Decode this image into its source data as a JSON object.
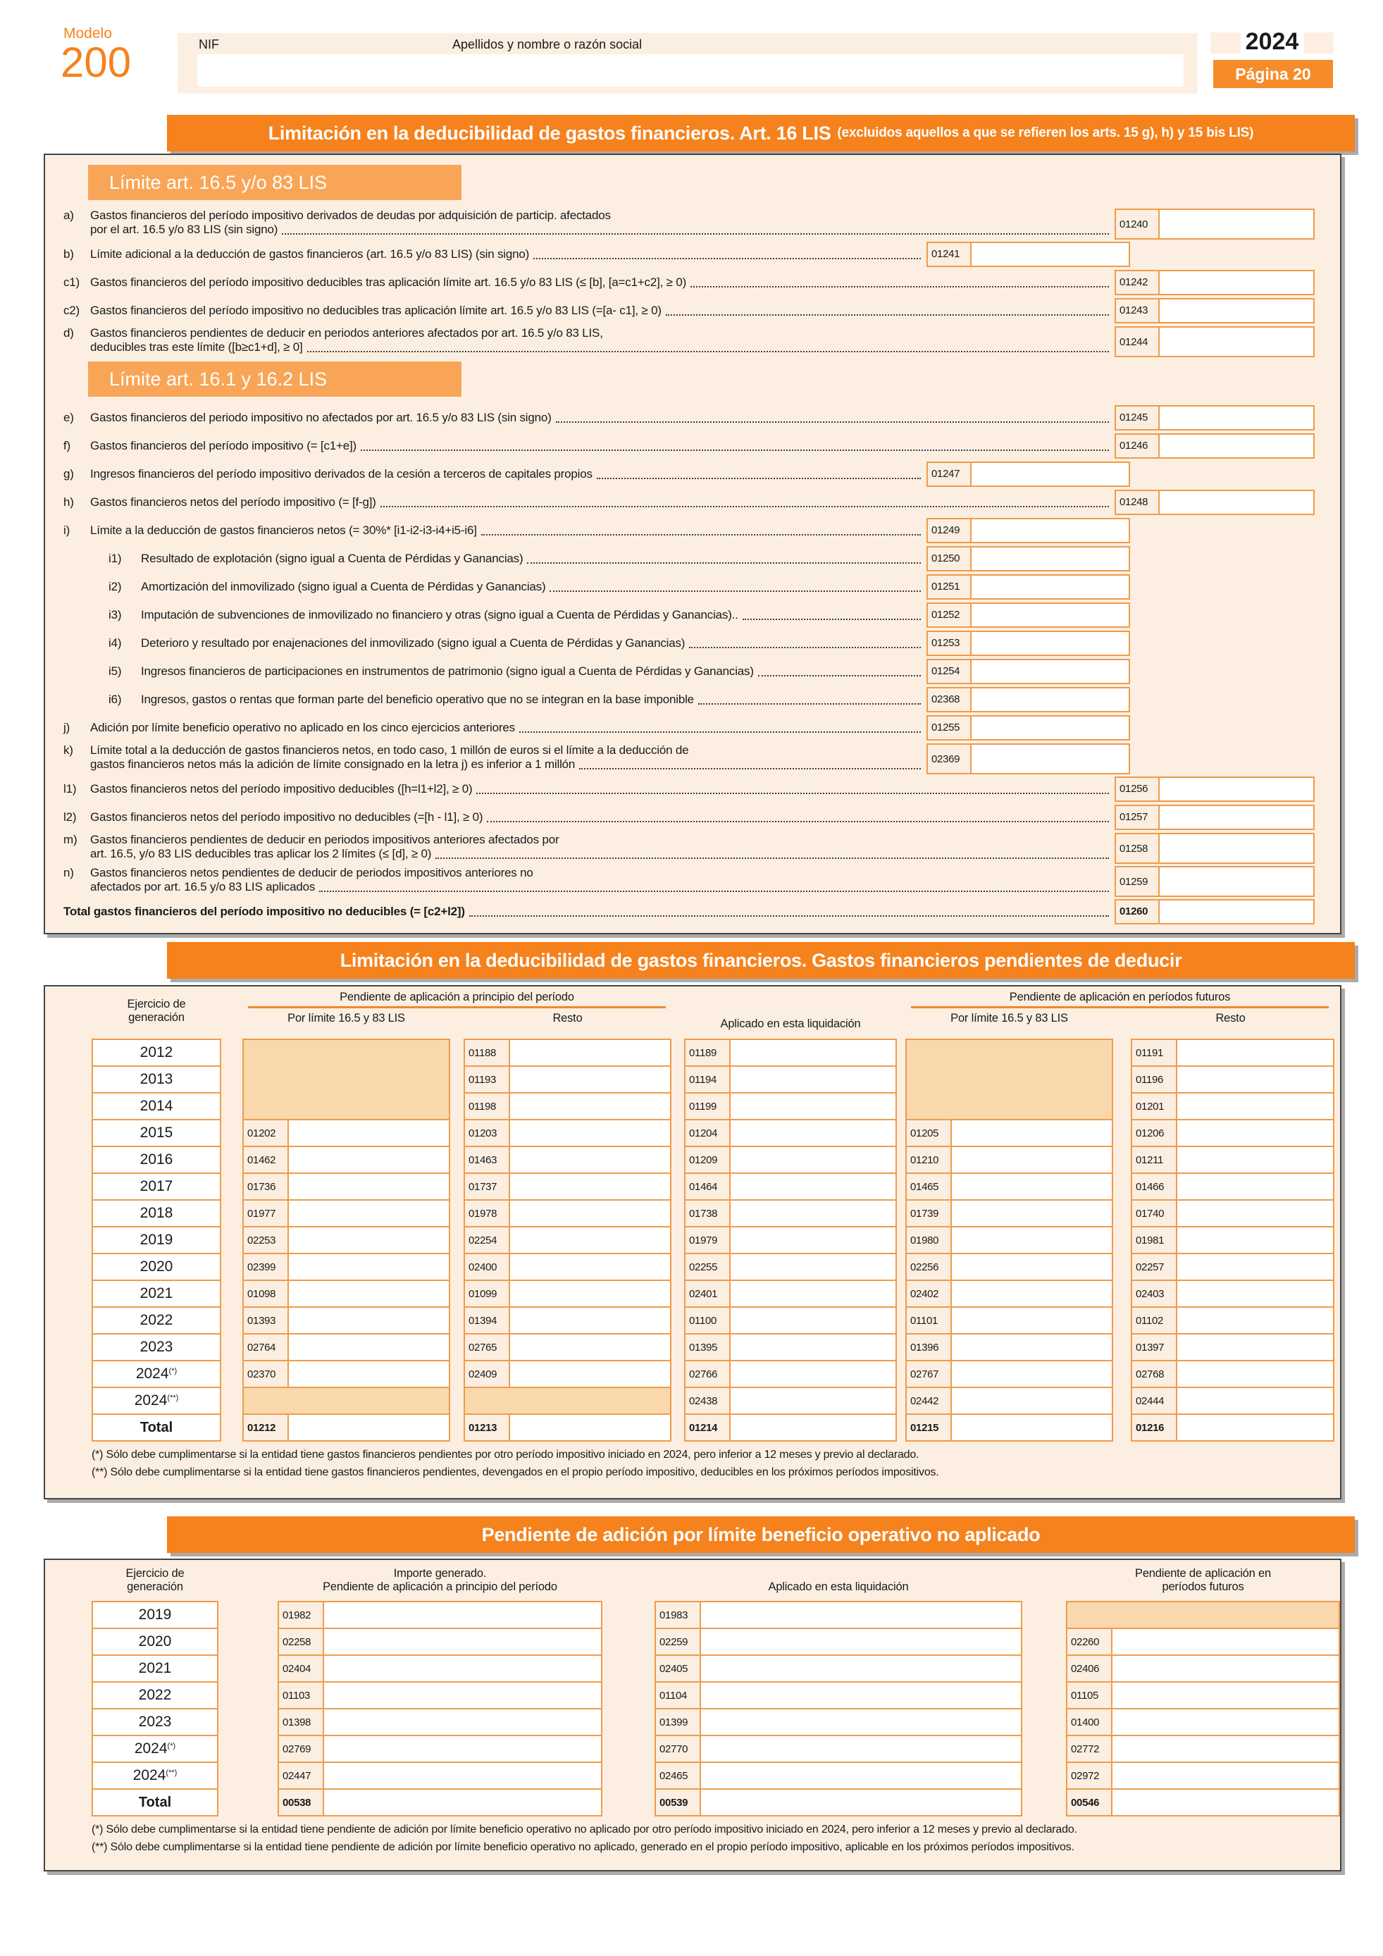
{
  "header": {
    "modelo_label": "Modelo",
    "modelo_number": "200",
    "nif_label": "NIF",
    "name_label": "Apellidos y nombre o razón social",
    "year": "2024",
    "page": "Página 20"
  },
  "sections": {
    "s1": {
      "bar_title": "Limitación en la deducibilidad de gastos financieros. Art. 16 LIS",
      "bar_subtitle": "(excluidos aquellos a que se refieren los arts. 15 g), h) y 15 bis LIS)",
      "heading1": "Límite art. 16.5 y/o 83 LIS",
      "heading2": "Límite art. 16.1 y 16.2 LIS"
    },
    "s2": {
      "bar_title": "Limitación en la deducibilidad de gastos financieros. Gastos financieros pendientes de deducir"
    },
    "s3": {
      "bar_title": "Pendiente de adición por límite beneficio operativo no aplicado"
    }
  },
  "form": {
    "block1": [
      {
        "letter": "a)",
        "lines": [
          "Gastos financieros del período impositivo derivados de deudas por adquisición de particip. afectados",
          "por el art. 16.5 y/o 83 LIS (sin signo)"
        ],
        "code": "01240",
        "pos": "right"
      },
      {
        "letter": "b)",
        "text": "Límite adicional a la deducción de gastos financieros (art. 16.5 y/o 83 LIS) (sin signo)",
        "code": "01241",
        "pos": "mid"
      },
      {
        "letter": "c1)",
        "text": "Gastos financieros del período impositivo deducibles tras aplicación límite art. 16.5 y/o 83 LIS (≤ [b], [a=c1+c2], ≥ 0)",
        "code": "01242",
        "pos": "right"
      },
      {
        "letter": "c2)",
        "text": "Gastos financieros del período impositivo no deducibles tras aplicación límite art. 16.5 y/o 83 LIS (=[a- c1], ≥ 0)",
        "code": "01243",
        "pos": "right"
      },
      {
        "letter": "d)",
        "lines": [
          "Gastos financieros pendientes de deducir en periodos anteriores afectados por art. 16.5 y/o 83 LIS,",
          "deducibles tras este límite ([b≥c1+d], ≥ 0]"
        ],
        "code": "01244",
        "pos": "right"
      }
    ],
    "block2": [
      {
        "letter": "e)",
        "text": "Gastos financieros del periodo impositivo no afectados por art. 16.5 y/o 83 LIS (sin signo)",
        "code": "01245",
        "pos": "right"
      },
      {
        "letter": "f)",
        "text": "Gastos financieros del período impositivo (= [c1+e])",
        "code": "01246",
        "pos": "right"
      },
      {
        "letter": "g)",
        "text": "Ingresos financieros del período impositivo derivados de la cesión a terceros de capitales propios",
        "code": "01247",
        "pos": "mid"
      },
      {
        "letter": "h)",
        "text": "Gastos financieros netos del período impositivo (= [f-g])",
        "code": "01248",
        "pos": "right"
      },
      {
        "letter": "i)",
        "text": "Límite a la deducción de gastos financieros netos (= 30%* [i1-i2-i3-i4+i5-i6]",
        "code": "01249",
        "pos": "mid"
      },
      {
        "letter": "i1)",
        "text": "Resultado de explotación (signo igual a Cuenta de Pérdidas y Ganancias)",
        "code": "01250",
        "pos": "mid",
        "indent": true
      },
      {
        "letter": "i2)",
        "text": "Amortización del inmovilizado (signo igual a Cuenta de Pérdidas y Ganancias)",
        "code": "01251",
        "pos": "mid",
        "indent": true
      },
      {
        "letter": "i3)",
        "text": "Imputación de subvenciones de inmovilizado no financiero y otras (signo igual a Cuenta de Pérdidas y Ganancias)..",
        "code": "01252",
        "pos": "mid",
        "indent": true
      },
      {
        "letter": "i4)",
        "text": "Deterioro y resultado por enajenaciones del inmovilizado (signo igual a Cuenta de Pérdidas y Ganancias)",
        "code": "01253",
        "pos": "mid",
        "indent": true
      },
      {
        "letter": "i5)",
        "text": "Ingresos financieros de participaciones en instrumentos de patrimonio (signo igual a Cuenta de Pérdidas y Ganancias)",
        "code": "01254",
        "pos": "mid",
        "indent": true
      },
      {
        "letter": "i6)",
        "text": "Ingresos, gastos o rentas que forman parte del beneficio operativo que no se integran en la base imponible",
        "code": "02368",
        "pos": "mid",
        "indent": true
      },
      {
        "letter": "j)",
        "text": "Adición por límite beneficio operativo no aplicado en los cinco ejercicios anteriores",
        "code": "01255",
        "pos": "mid"
      },
      {
        "letter": "k)",
        "lines": [
          "Límite total a la deducción de gastos financieros netos, en todo caso, 1 millón de euros si el límite a la deducción de",
          "gastos financieros netos más la adición de límite consignado en la letra j) es inferior a 1 millón"
        ],
        "code": "02369",
        "pos": "mid"
      },
      {
        "letter": "l1)",
        "text": "Gastos financieros netos del período impositivo deducibles ([h=l1+l2], ≥ 0)",
        "code": "01256",
        "pos": "right"
      },
      {
        "letter": "l2)",
        "text": "Gastos financieros netos del período impositivo no deducibles (=[h - l1], ≥ 0)",
        "code": "01257",
        "pos": "right"
      },
      {
        "letter": "m)",
        "lines": [
          "Gastos financieros pendientes de deducir en periodos impositivos anteriores afectados por",
          "art. 16.5, y/o 83 LIS deducibles tras aplicar los 2 límites (≤ [d], ≥ 0)"
        ],
        "code": "01258",
        "pos": "right"
      },
      {
        "letter": "n)",
        "lines": [
          "Gastos financieros netos pendientes de deducir de periodos impositivos anteriores  no",
          "afectados por art. 16.5 y/o 83 LIS aplicados"
        ],
        "code": "01259",
        "pos": "right"
      },
      {
        "letter": "",
        "text": "Total gastos financieros del período impositivo no deducibles (= [c2+l2])",
        "code": "01260",
        "pos": "right",
        "bold": true
      }
    ]
  },
  "table2": {
    "headers": {
      "year_line1": "Ejercicio de",
      "year_line2": "generación",
      "group1": "Pendiente de aplicación a principio del período",
      "sub_limite": "Por límite 16.5 y 83 LIS",
      "sub_resto": "Resto",
      "applied": "Aplicado en esta liquidación",
      "group2": "Pendiente de aplicación en períodos futuros",
      "sub_limite2": "Por límite 16.5 y 83 LIS",
      "sub_resto2": "Resto"
    },
    "years": [
      {
        "label": "2012"
      },
      {
        "label": "2013"
      },
      {
        "label": "2014"
      },
      {
        "label": "2015"
      },
      {
        "label": "2016"
      },
      {
        "label": "2017"
      },
      {
        "label": "2018"
      },
      {
        "label": "2019"
      },
      {
        "label": "2020"
      },
      {
        "label": "2021"
      },
      {
        "label": "2022"
      },
      {
        "label": "2023"
      },
      {
        "label": "2024",
        "sup": "(*)"
      },
      {
        "label": "2024",
        "sup": "(**)"
      },
      {
        "label": "Total",
        "bold": true
      }
    ],
    "columns": [
      {
        "cells": [
          null,
          null,
          null,
          "01202",
          "01462",
          "01736",
          "01977",
          "02253",
          "02399",
          "01098",
          "01393",
          "02764",
          "02370",
          null,
          "01212"
        ]
      },
      {
        "cells": [
          "01188",
          "01193",
          "01198",
          "01203",
          "01463",
          "01737",
          "01978",
          "02254",
          "02400",
          "01099",
          "01394",
          "02765",
          "02409",
          null,
          "01213"
        ]
      },
      {
        "cells": [
          "01189",
          "01194",
          "01199",
          "01204",
          "01209",
          "01464",
          "01738",
          "01979",
          "02255",
          "02401",
          "01100",
          "01395",
          "02766",
          "02438",
          "01214"
        ]
      },
      {
        "cells": [
          null,
          null,
          null,
          "01205",
          "01210",
          "01465",
          "01739",
          "01980",
          "02256",
          "02402",
          "01101",
          "01396",
          "02767",
          "02442",
          "01215"
        ]
      },
      {
        "cells": [
          "01191",
          "01196",
          "01201",
          "01206",
          "01211",
          "01466",
          "01740",
          "01981",
          "02257",
          "02403",
          "01102",
          "01397",
          "02768",
          "02444",
          "01216"
        ]
      }
    ],
    "footnotes": [
      "(*) Sólo debe cumplimentarse si la entidad tiene gastos financieros pendientes por otro período impositivo iniciado en 2024, pero inferior a 12 meses y previo al declarado.",
      "(**) Sólo debe cumplimentarse si la entidad tiene gastos financieros pendientes, devengados en el propio período impositivo, deducibles en los próximos períodos impositivos."
    ]
  },
  "table3": {
    "headers": {
      "year_line1": "Ejercicio de",
      "year_line2": "generación",
      "col1_line1": "Importe generado.",
      "col1_line2": "Pendiente de aplicación a principio del período",
      "col2": "Aplicado en esta liquidación",
      "col3_line1": "Pendiente de aplicación en",
      "col3_line2": "períodos futuros"
    },
    "years": [
      {
        "label": "2019"
      },
      {
        "label": "2020"
      },
      {
        "label": "2021"
      },
      {
        "label": "2022"
      },
      {
        "label": "2023"
      },
      {
        "label": "2024",
        "sup": "(*)"
      },
      {
        "label": "2024",
        "sup": "(**)"
      },
      {
        "label": "Total",
        "bold": true
      }
    ],
    "columns": [
      {
        "cells": [
          "01982",
          "02258",
          "02404",
          "01103",
          "01398",
          "02769",
          "02447",
          "00538"
        ]
      },
      {
        "cells": [
          "01983",
          "02259",
          "02405",
          "01104",
          "01399",
          "02770",
          "02465",
          "00539"
        ]
      },
      {
        "cells": [
          null,
          "02260",
          "02406",
          "01105",
          "01400",
          "02772",
          "02972",
          "00546"
        ]
      }
    ],
    "footnotes": [
      "(*) Sólo debe cumplimentarse si la entidad tiene pendiente de adición por límite beneficio operativo no aplicado por otro período impositivo iniciado en 2024, pero inferior a 12 meses y previo al declarado.",
      "(**) Sólo debe cumplimentarse si la entidad tiene pendiente de adición por límite beneficio operativo no aplicado, generado en el propio período impositivo, aplicable en los próximos períodos impositivos."
    ]
  }
}
